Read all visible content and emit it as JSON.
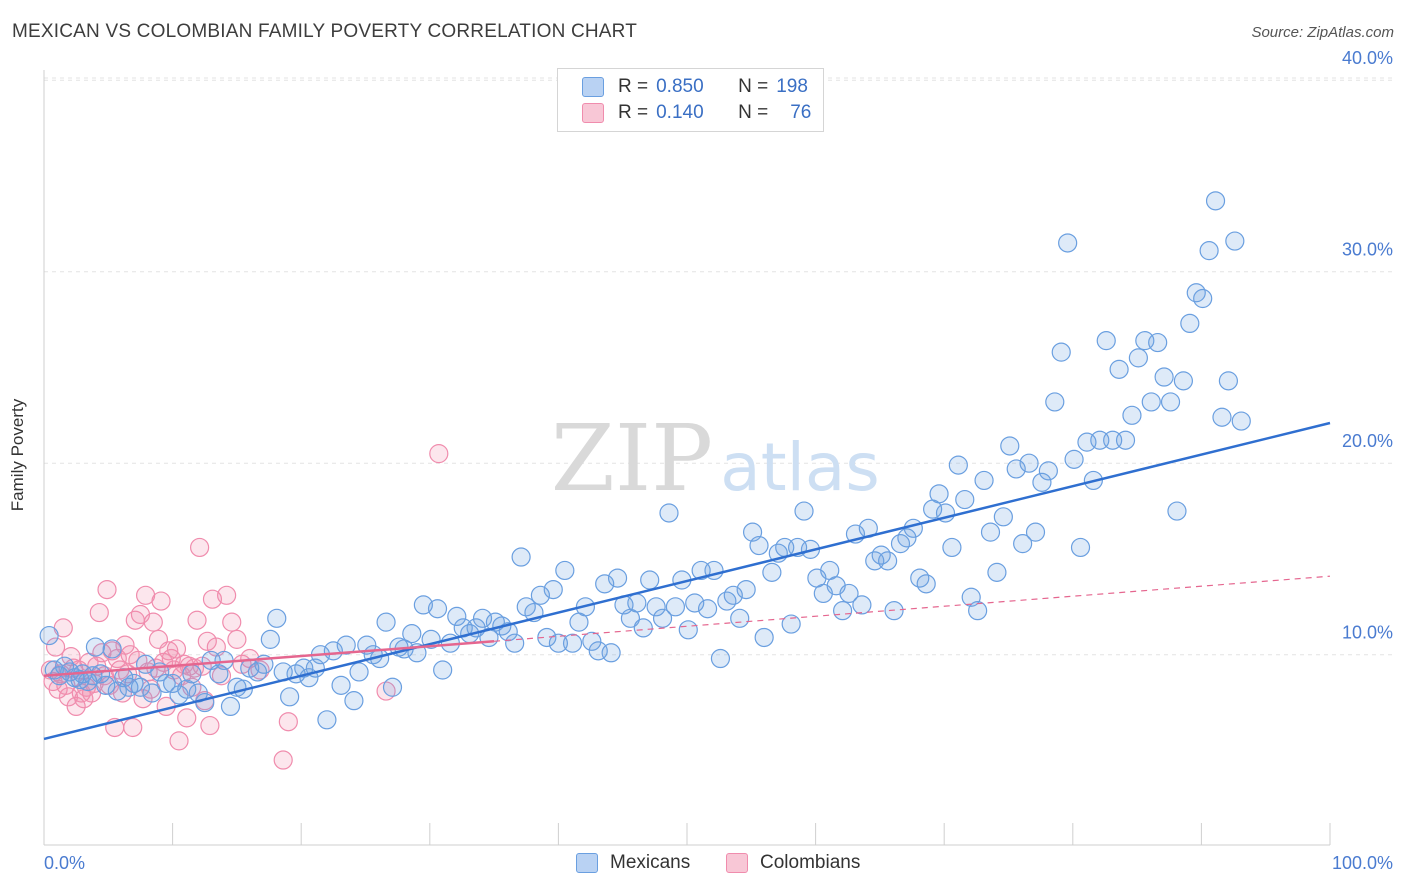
{
  "title": "MEXICAN VS COLOMBIAN FAMILY POVERTY CORRELATION CHART",
  "source": "Source: ZipAtlas.com",
  "watermark": {
    "zip": "ZIP",
    "atlas": "atlas"
  },
  "colors": {
    "blue": "#6a9fe0",
    "blue_line": "#2f6fd0",
    "pink": "#f08cad",
    "pink_line": "#e5668f",
    "tick_text": "#4a7bd0"
  },
  "legend": {
    "rows": [
      {
        "r_label": "R = ",
        "r_value": "0.850",
        "n_label": "N = ",
        "n_value": "198"
      },
      {
        "r_label": "R = ",
        "r_value": "0.140",
        "n_label": "N = ",
        "n_value": "76"
      }
    ]
  },
  "bottom_legend": [
    "Mexicans",
    "Colombians"
  ],
  "chart_data": {
    "type": "scatter",
    "title": "MEXICAN VS COLOMBIAN FAMILY POVERTY CORRELATION CHART",
    "xlabel": "",
    "ylabel": "Family Poverty",
    "xlim": [
      0,
      100
    ],
    "ylim": [
      0,
      42
    ],
    "x_tick_labels": [
      "0.0%",
      "100.0%"
    ],
    "y_ticks": [
      10,
      20,
      30,
      40
    ],
    "y_tick_labels": [
      "10.0%",
      "20.0%",
      "30.0%",
      "40.0%"
    ],
    "grid": true,
    "legend_position": "top-center",
    "series": [
      {
        "name": "Mexicans",
        "r": 0.85,
        "n": 198,
        "trend": {
          "x": [
            0,
            100
          ],
          "y": [
            5.6,
            22.1
          ]
        },
        "points": [
          [
            0.4,
            11.0
          ],
          [
            0.8,
            9.2
          ],
          [
            1.2,
            8.9
          ],
          [
            1.6,
            9.4
          ],
          [
            2.0,
            9.1
          ],
          [
            2.4,
            8.8
          ],
          [
            2.8,
            8.7
          ],
          [
            3.0,
            9.0
          ],
          [
            3.4,
            8.6
          ],
          [
            3.8,
            8.9
          ],
          [
            4.0,
            10.4
          ],
          [
            4.4,
            9.0
          ],
          [
            4.8,
            8.4
          ],
          [
            5.3,
            10.3
          ],
          [
            5.7,
            8.1
          ],
          [
            6.2,
            8.8
          ],
          [
            6.6,
            8.3
          ],
          [
            7.0,
            8.5
          ],
          [
            7.5,
            8.3
          ],
          [
            7.9,
            9.5
          ],
          [
            8.4,
            8.0
          ],
          [
            9.0,
            9.1
          ],
          [
            9.5,
            8.5
          ],
          [
            10.0,
            8.5
          ],
          [
            10.5,
            7.9
          ],
          [
            11.1,
            8.2
          ],
          [
            11.5,
            9.0
          ],
          [
            12.0,
            8.0
          ],
          [
            12.5,
            7.5
          ],
          [
            13.0,
            9.7
          ],
          [
            13.6,
            9.0
          ],
          [
            14.0,
            9.7
          ],
          [
            14.5,
            7.3
          ],
          [
            15.0,
            8.3
          ],
          [
            15.5,
            8.2
          ],
          [
            16.0,
            9.3
          ],
          [
            16.6,
            9.1
          ],
          [
            17.1,
            9.5
          ],
          [
            17.6,
            10.8
          ],
          [
            18.1,
            11.9
          ],
          [
            18.6,
            9.1
          ],
          [
            19.1,
            7.8
          ],
          [
            19.6,
            9.0
          ],
          [
            20.2,
            9.3
          ],
          [
            20.6,
            8.8
          ],
          [
            21.1,
            9.3
          ],
          [
            21.5,
            10.0
          ],
          [
            22.0,
            6.6
          ],
          [
            22.5,
            10.2
          ],
          [
            23.1,
            8.4
          ],
          [
            23.5,
            10.5
          ],
          [
            24.1,
            7.6
          ],
          [
            24.5,
            9.1
          ],
          [
            25.1,
            10.5
          ],
          [
            25.6,
            10.0
          ],
          [
            26.1,
            9.8
          ],
          [
            26.6,
            11.7
          ],
          [
            27.1,
            8.3
          ],
          [
            27.6,
            10.4
          ],
          [
            28.0,
            10.3
          ],
          [
            28.6,
            11.1
          ],
          [
            29.0,
            10.1
          ],
          [
            29.5,
            12.6
          ],
          [
            30.1,
            10.8
          ],
          [
            30.6,
            12.4
          ],
          [
            31.0,
            9.2
          ],
          [
            31.6,
            10.6
          ],
          [
            32.1,
            12.0
          ],
          [
            32.6,
            11.4
          ],
          [
            33.1,
            11.1
          ],
          [
            33.6,
            11.4
          ],
          [
            34.1,
            11.9
          ],
          [
            34.6,
            10.9
          ],
          [
            35.1,
            11.7
          ],
          [
            35.6,
            11.5
          ],
          [
            36.1,
            11.2
          ],
          [
            36.6,
            10.6
          ],
          [
            37.1,
            15.1
          ],
          [
            37.5,
            12.5
          ],
          [
            38.1,
            12.2
          ],
          [
            38.6,
            13.1
          ],
          [
            39.1,
            10.9
          ],
          [
            39.6,
            13.4
          ],
          [
            40.0,
            10.6
          ],
          [
            40.5,
            14.4
          ],
          [
            41.1,
            10.6
          ],
          [
            41.6,
            11.7
          ],
          [
            42.1,
            12.5
          ],
          [
            42.6,
            10.7
          ],
          [
            43.1,
            10.2
          ],
          [
            43.6,
            13.7
          ],
          [
            44.1,
            10.1
          ],
          [
            44.6,
            14.0
          ],
          [
            45.1,
            12.6
          ],
          [
            45.6,
            11.9
          ],
          [
            46.1,
            12.7
          ],
          [
            46.6,
            11.4
          ],
          [
            47.1,
            13.9
          ],
          [
            47.6,
            12.5
          ],
          [
            48.1,
            11.9
          ],
          [
            48.6,
            17.4
          ],
          [
            49.1,
            12.5
          ],
          [
            49.6,
            13.9
          ],
          [
            50.1,
            11.3
          ],
          [
            50.6,
            12.7
          ],
          [
            51.1,
            14.4
          ],
          [
            51.6,
            12.4
          ],
          [
            52.1,
            14.4
          ],
          [
            52.6,
            9.8
          ],
          [
            53.1,
            12.8
          ],
          [
            53.6,
            13.1
          ],
          [
            54.1,
            11.9
          ],
          [
            54.6,
            13.4
          ],
          [
            55.1,
            16.4
          ],
          [
            55.6,
            15.7
          ],
          [
            56.0,
            10.9
          ],
          [
            56.6,
            14.3
          ],
          [
            57.1,
            15.3
          ],
          [
            57.6,
            15.6
          ],
          [
            58.1,
            11.6
          ],
          [
            58.6,
            15.6
          ],
          [
            59.1,
            17.5
          ],
          [
            59.6,
            15.5
          ],
          [
            60.1,
            14.0
          ],
          [
            60.6,
            13.2
          ],
          [
            61.1,
            14.4
          ],
          [
            61.6,
            13.6
          ],
          [
            62.1,
            12.3
          ],
          [
            62.6,
            13.2
          ],
          [
            63.1,
            16.3
          ],
          [
            63.6,
            12.6
          ],
          [
            64.1,
            16.6
          ],
          [
            64.6,
            14.9
          ],
          [
            65.1,
            15.2
          ],
          [
            65.6,
            14.9
          ],
          [
            66.1,
            12.3
          ],
          [
            66.6,
            15.8
          ],
          [
            67.1,
            16.1
          ],
          [
            67.6,
            16.6
          ],
          [
            68.1,
            14.0
          ],
          [
            68.6,
            13.7
          ],
          [
            69.1,
            17.6
          ],
          [
            69.6,
            18.4
          ],
          [
            70.1,
            17.4
          ],
          [
            70.6,
            15.6
          ],
          [
            71.1,
            19.9
          ],
          [
            71.6,
            18.1
          ],
          [
            72.1,
            13.0
          ],
          [
            72.6,
            12.3
          ],
          [
            73.1,
            19.1
          ],
          [
            73.6,
            16.4
          ],
          [
            74.1,
            14.3
          ],
          [
            74.6,
            17.2
          ],
          [
            75.1,
            20.9
          ],
          [
            75.6,
            19.7
          ],
          [
            76.1,
            15.8
          ],
          [
            76.6,
            20.0
          ],
          [
            77.1,
            16.4
          ],
          [
            77.6,
            19.0
          ],
          [
            78.1,
            19.6
          ],
          [
            78.6,
            23.2
          ],
          [
            79.1,
            25.8
          ],
          [
            79.6,
            31.5
          ],
          [
            80.1,
            20.2
          ],
          [
            80.6,
            15.6
          ],
          [
            81.1,
            21.1
          ],
          [
            81.6,
            19.1
          ],
          [
            82.1,
            21.2
          ],
          [
            82.6,
            26.4
          ],
          [
            83.1,
            21.2
          ],
          [
            83.6,
            24.9
          ],
          [
            84.1,
            21.2
          ],
          [
            84.6,
            22.5
          ],
          [
            85.1,
            25.5
          ],
          [
            85.6,
            26.4
          ],
          [
            86.1,
            23.2
          ],
          [
            86.6,
            26.3
          ],
          [
            87.1,
            24.5
          ],
          [
            87.6,
            23.2
          ],
          [
            88.1,
            17.5
          ],
          [
            88.6,
            24.3
          ],
          [
            89.1,
            27.3
          ],
          [
            89.6,
            28.9
          ],
          [
            90.1,
            28.6
          ],
          [
            90.6,
            31.1
          ],
          [
            91.1,
            33.7
          ],
          [
            91.6,
            22.4
          ],
          [
            92.1,
            24.3
          ],
          [
            92.6,
            31.6
          ],
          [
            93.1,
            22.2
          ]
        ]
      },
      {
        "name": "Colombians",
        "r": 0.14,
        "n": 76,
        "trend": {
          "x": [
            0,
            35
          ],
          "y": [
            8.9,
            10.7
          ]
        },
        "trend_extended": {
          "x": [
            35,
            100
          ],
          "y": [
            10.7,
            14.1
          ]
        },
        "points": [
          [
            0.5,
            9.2
          ],
          [
            0.7,
            8.6
          ],
          [
            0.9,
            10.4
          ],
          [
            1.1,
            8.2
          ],
          [
            1.3,
            9.0
          ],
          [
            1.5,
            11.4
          ],
          [
            1.7,
            8.4
          ],
          [
            1.9,
            7.8
          ],
          [
            2.1,
            9.9
          ],
          [
            2.3,
            9.3
          ],
          [
            2.5,
            7.3
          ],
          [
            2.7,
            9.2
          ],
          [
            2.9,
            8.0
          ],
          [
            3.1,
            7.7
          ],
          [
            3.3,
            8.3
          ],
          [
            3.5,
            9.6
          ],
          [
            3.7,
            8.0
          ],
          [
            3.9,
            8.5
          ],
          [
            4.1,
            9.4
          ],
          [
            4.3,
            12.2
          ],
          [
            4.5,
            10.1
          ],
          [
            4.7,
            8.9
          ],
          [
            4.9,
            13.4
          ],
          [
            5.1,
            8.4
          ],
          [
            5.3,
            10.2
          ],
          [
            5.5,
            6.2
          ],
          [
            5.7,
            9.8
          ],
          [
            5.9,
            9.2
          ],
          [
            6.1,
            8.0
          ],
          [
            6.3,
            10.5
          ],
          [
            6.5,
            9.0
          ],
          [
            6.7,
            10.0
          ],
          [
            6.9,
            6.2
          ],
          [
            7.1,
            11.8
          ],
          [
            7.3,
            9.7
          ],
          [
            7.5,
            12.1
          ],
          [
            7.7,
            7.7
          ],
          [
            7.9,
            13.1
          ],
          [
            8.1,
            9.1
          ],
          [
            8.3,
            8.2
          ],
          [
            8.5,
            11.7
          ],
          [
            8.7,
            9.3
          ],
          [
            8.9,
            10.8
          ],
          [
            9.1,
            12.8
          ],
          [
            9.3,
            9.6
          ],
          [
            9.5,
            7.3
          ],
          [
            9.7,
            10.2
          ],
          [
            9.9,
            9.8
          ],
          [
            10.1,
            9.2
          ],
          [
            10.3,
            10.3
          ],
          [
            10.5,
            5.5
          ],
          [
            10.7,
            8.9
          ],
          [
            10.9,
            9.5
          ],
          [
            11.1,
            6.7
          ],
          [
            11.3,
            9.4
          ],
          [
            11.5,
            8.3
          ],
          [
            11.7,
            9.3
          ],
          [
            11.9,
            11.8
          ],
          [
            12.1,
            15.6
          ],
          [
            12.3,
            9.4
          ],
          [
            12.5,
            7.6
          ],
          [
            12.7,
            10.7
          ],
          [
            12.9,
            6.3
          ],
          [
            13.1,
            12.9
          ],
          [
            13.4,
            10.4
          ],
          [
            13.8,
            8.9
          ],
          [
            14.2,
            13.1
          ],
          [
            14.6,
            11.7
          ],
          [
            15.0,
            10.8
          ],
          [
            15.4,
            9.5
          ],
          [
            16.0,
            9.8
          ],
          [
            16.8,
            9.2
          ],
          [
            18.6,
            4.5
          ],
          [
            19.0,
            6.5
          ],
          [
            26.6,
            8.1
          ],
          [
            30.7,
            20.5
          ]
        ]
      }
    ]
  }
}
